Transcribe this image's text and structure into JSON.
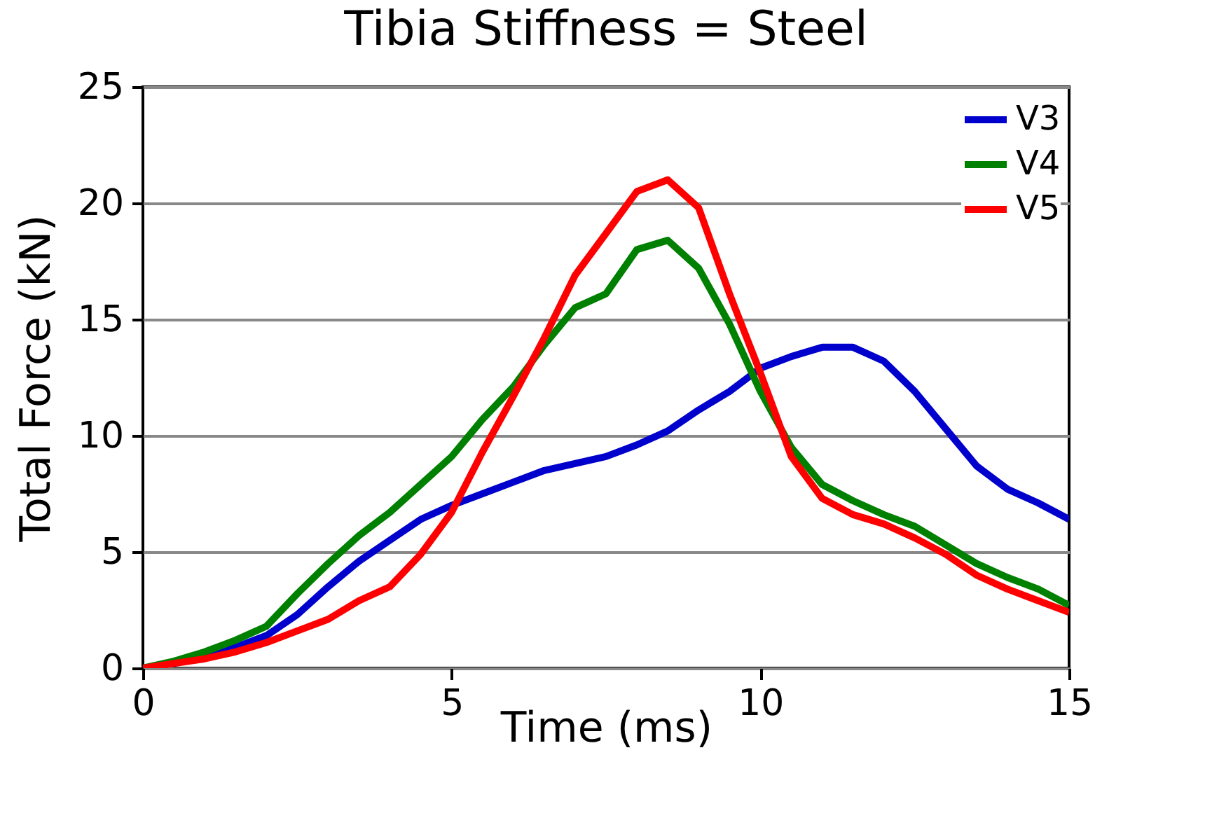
{
  "chart_data": {
    "type": "line",
    "title": "Tibia Stiffness = Steel",
    "xlabel": "Time (ms)",
    "ylabel": "Total Force (kN)",
    "x": [
      0,
      0.5,
      1,
      1.5,
      2,
      2.5,
      3,
      3.5,
      4,
      4.5,
      5,
      5.5,
      6,
      6.5,
      7,
      7.5,
      8,
      8.5,
      9,
      9.5,
      10,
      10.5,
      11,
      11.5,
      12,
      12.5,
      13,
      13.5,
      14,
      14.5,
      15
    ],
    "series": [
      {
        "name": "V3",
        "color": "#0000cc",
        "values": [
          null,
          null,
          0.5,
          0.9,
          1.4,
          2.3,
          3.5,
          4.6,
          5.5,
          6.4,
          7.0,
          7.5,
          8.0,
          8.5,
          8.8,
          9.1,
          9.6,
          10.2,
          11.1,
          11.9,
          12.9,
          13.4,
          13.8,
          13.8,
          13.2,
          11.9,
          10.3,
          8.7,
          7.7,
          7.1,
          6.4
        ]
      },
      {
        "name": "V4",
        "color": "#008000",
        "values": [
          0,
          0.3,
          0.7,
          1.2,
          1.8,
          3.2,
          4.5,
          5.7,
          6.7,
          7.9,
          9.1,
          10.7,
          12.1,
          13.9,
          15.5,
          16.1,
          18.0,
          18.4,
          17.2,
          14.8,
          11.9,
          9.5,
          7.9,
          7.2,
          6.6,
          6.1,
          5.3,
          4.5,
          3.9,
          3.4,
          2.7
        ]
      },
      {
        "name": "V5",
        "color": "#ff0000",
        "values": [
          0,
          0.2,
          0.4,
          0.7,
          1.1,
          1.6,
          2.1,
          2.9,
          3.5,
          4.9,
          6.7,
          9.3,
          11.7,
          14.2,
          16.9,
          18.7,
          20.5,
          21.0,
          19.8,
          16.1,
          12.7,
          9.1,
          7.3,
          6.6,
          6.2,
          5.6,
          4.9,
          4.0,
          3.4,
          2.9,
          2.4
        ]
      }
    ],
    "xlim": [
      0,
      15
    ],
    "xticks": [
      0,
      5,
      10,
      15
    ],
    "ylim": [
      0,
      25
    ],
    "yticks": [
      0,
      5,
      10,
      15,
      20,
      25
    ],
    "grid": "y",
    "legend": "top right",
    "line_style": "solid",
    "marker": "none"
  }
}
